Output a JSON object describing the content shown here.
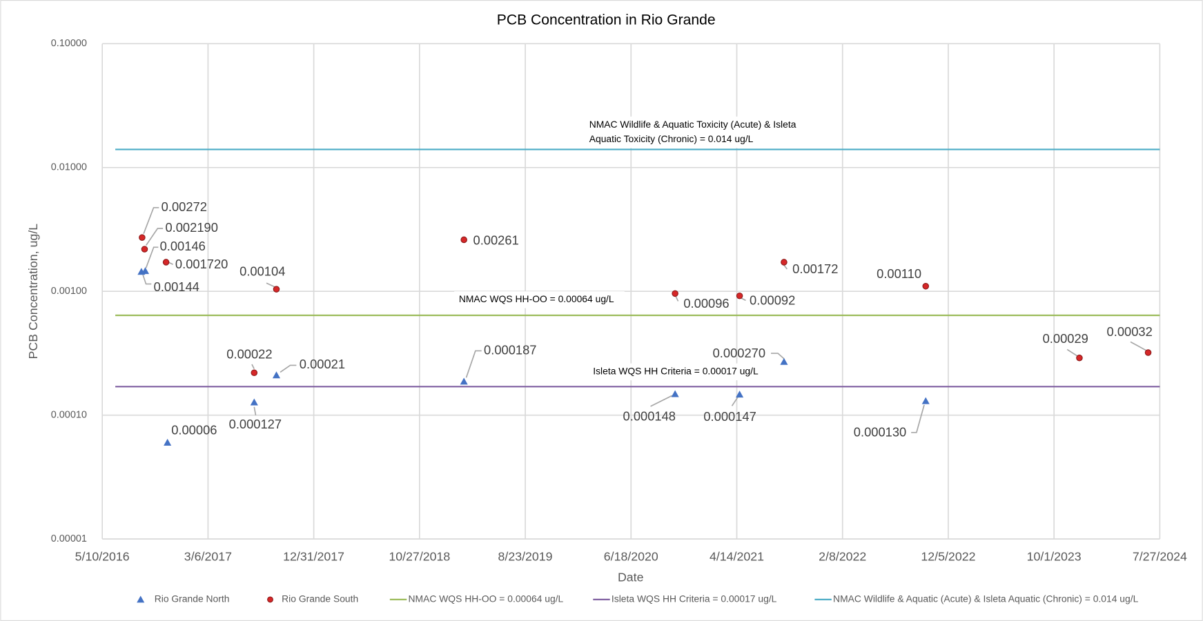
{
  "chart_data": {
    "type": "scatter",
    "title": "PCB Concentration in Rio Grande",
    "x_label": "Date",
    "y_label": "PCB Concentration, ug/L",
    "log_y": true,
    "grid": true,
    "legend": "bottom",
    "xlim": [
      "5/10/2016",
      "7/27/2024"
    ],
    "xticks": [
      "5/10/2016",
      "3/6/2017",
      "12/31/2017",
      "10/27/2018",
      "8/23/2019",
      "6/18/2020",
      "4/14/2021",
      "2/8/2022",
      "12/5/2022",
      "10/1/2023",
      "7/27/2024"
    ],
    "ylim": [
      1e-05,
      0.1
    ],
    "yticks": [
      {
        "value": 1e-05,
        "label": "0.00001"
      },
      {
        "value": 0.0001,
        "label": "0.00010"
      },
      {
        "value": 0.001,
        "label": "0.00100"
      },
      {
        "value": 0.01,
        "label": "0.01000"
      },
      {
        "value": 0.1,
        "label": "0.10000"
      }
    ],
    "series": [
      {
        "name": "Rio Grande North",
        "marker": "triangle",
        "color": "#4472c4",
        "x": [
          "8/29/2016",
          "9/9/2016",
          "11/11/2016",
          "7/15/2017",
          "9/16/2017",
          "3/2/2019",
          "10/21/2020",
          "4/22/2021",
          "8/26/2021",
          "10/2/2022"
        ],
        "values": [
          0.00144,
          0.00146,
          6e-05,
          0.000127,
          0.00021,
          0.000187,
          0.000148,
          0.000147,
          0.00027,
          0.00013
        ],
        "value_labels": [
          "0.00144",
          "0.00146",
          "0.00006",
          "0.000127",
          "0.00021",
          "0.000187",
          "0.000148",
          "0.000147",
          "0.000270",
          "0.000130"
        ]
      },
      {
        "name": "Rio Grande South",
        "marker": "circle",
        "color": "#d62728",
        "x": [
          "8/31/2016",
          "9/7/2016",
          "11/7/2016",
          "7/15/2017",
          "9/16/2017",
          "3/2/2019",
          "10/21/2020",
          "4/22/2021",
          "8/26/2021",
          "10/2/2022",
          "12/12/2023",
          "6/24/2024"
        ],
        "values": [
          0.00272,
          0.00219,
          0.00172,
          0.00022,
          0.00104,
          0.00261,
          0.00096,
          0.00092,
          0.00172,
          0.0011,
          0.00029,
          0.00032
        ],
        "value_labels": [
          "0.00272",
          "0.002190",
          "0.001720",
          "0.00022",
          "0.00104",
          "0.00261",
          "0.00096",
          "0.00092",
          "0.00172",
          "0.00110",
          "0.00029",
          "0.00032"
        ]
      }
    ],
    "reference_lines": [
      {
        "name": "NMAC WQS HH-OO = 0.00064 ug/L",
        "value": 0.00064,
        "color": "#9bbb59",
        "annotation": [
          "NMAC WQS HH-OO = 0.00064 ug/L"
        ]
      },
      {
        "name": "Isleta WQS HH Criteria = 0.00017 ug/L",
        "value": 0.00017,
        "color": "#7f5fa0",
        "annotation": [
          "Isleta WQS HH Criteria = 0.00017 ug/L"
        ]
      },
      {
        "name": "NMAC Wildlife & Aquatic (Acute) & Isleta Aquatic (Chronic) = 0.014 ug/L",
        "value": 0.014,
        "color": "#4bacc6",
        "annotation": [
          "NMAC Wildlife & Aquatic Toxicity (Acute) & Isleta",
          "Aquatic Toxicity (Chronic) = 0.014 ug/L"
        ]
      }
    ]
  }
}
